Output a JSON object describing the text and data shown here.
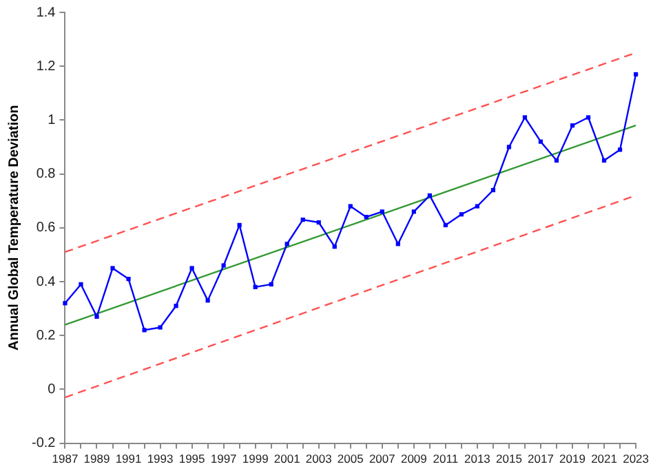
{
  "chart_data": {
    "type": "line",
    "ylabel": "Annual Global Temperature Deviation",
    "xlim": [
      1987,
      2023
    ],
    "xticks": [
      1987,
      {
        "value": 1988,
        "label": null
      },
      1989,
      {
        "value": 1990,
        "label": null
      },
      1991,
      {
        "value": 1992,
        "label": null
      },
      1993,
      {
        "value": 1994,
        "label": null
      },
      1995,
      {
        "value": 1996,
        "label": null
      },
      1997,
      {
        "value": 1998,
        "label": null
      },
      1999,
      {
        "value": 2000,
        "label": null
      },
      2001,
      {
        "value": 2002,
        "label": null
      },
      2003,
      {
        "value": 2004,
        "label": null
      },
      2005,
      {
        "value": 2006,
        "label": null
      },
      2007,
      {
        "value": 2008,
        "label": null
      },
      2009,
      {
        "value": 2010,
        "label": null
      },
      2011,
      {
        "value": 2012,
        "label": null
      },
      2013,
      {
        "value": 2014,
        "label": null
      },
      2015,
      {
        "value": 2016,
        "label": null
      },
      2017,
      {
        "value": 2018,
        "label": null
      },
      2019,
      {
        "value": 2020,
        "label": null
      },
      2021,
      {
        "value": 2022,
        "label": null
      },
      2023
    ],
    "ylim": [
      -0.2,
      1.4
    ],
    "yticks": [
      -0.2,
      0,
      0.2,
      0.4,
      0.6,
      0.8,
      1,
      1.2,
      1.4
    ],
    "grid": false,
    "legend": false,
    "series": [
      {
        "color": "#0000ff",
        "marker": "square",
        "line_style": "solid",
        "x": [
          1987,
          1988,
          1989,
          1990,
          1991,
          1992,
          1993,
          1994,
          1995,
          1996,
          1997,
          1998,
          1999,
          2000,
          2001,
          2002,
          2003,
          2004,
          2005,
          2006,
          2007,
          2008,
          2009,
          2010,
          2011,
          2012,
          2013,
          2014,
          2015,
          2016,
          2017,
          2018,
          2019,
          2020,
          2021,
          2022,
          2023
        ],
        "values": [
          0.32,
          0.39,
          0.27,
          0.45,
          0.41,
          0.22,
          0.23,
          0.31,
          0.45,
          0.33,
          0.46,
          0.61,
          0.38,
          0.39,
          0.54,
          0.63,
          0.62,
          0.53,
          0.68,
          0.64,
          0.66,
          0.54,
          0.66,
          0.72,
          0.61,
          0.65,
          0.68,
          0.74,
          0.9,
          1.01,
          0.92,
          0.85,
          0.98,
          1.01,
          0.85,
          0.89,
          1.17
        ]
      },
      {
        "color": "#339933",
        "marker": "none",
        "line_style": "solid",
        "x": [
          1987,
          2023
        ],
        "values": [
          0.24,
          0.98
        ]
      },
      {
        "color": "#ff5050",
        "marker": "none",
        "line_style": "dashed",
        "x": [
          1987,
          2023
        ],
        "values": [
          0.51,
          1.25
        ]
      },
      {
        "color": "#ff5050",
        "marker": "none",
        "line_style": "dashed",
        "x": [
          1987,
          2023
        ],
        "values": [
          -0.03,
          0.72
        ]
      }
    ]
  }
}
